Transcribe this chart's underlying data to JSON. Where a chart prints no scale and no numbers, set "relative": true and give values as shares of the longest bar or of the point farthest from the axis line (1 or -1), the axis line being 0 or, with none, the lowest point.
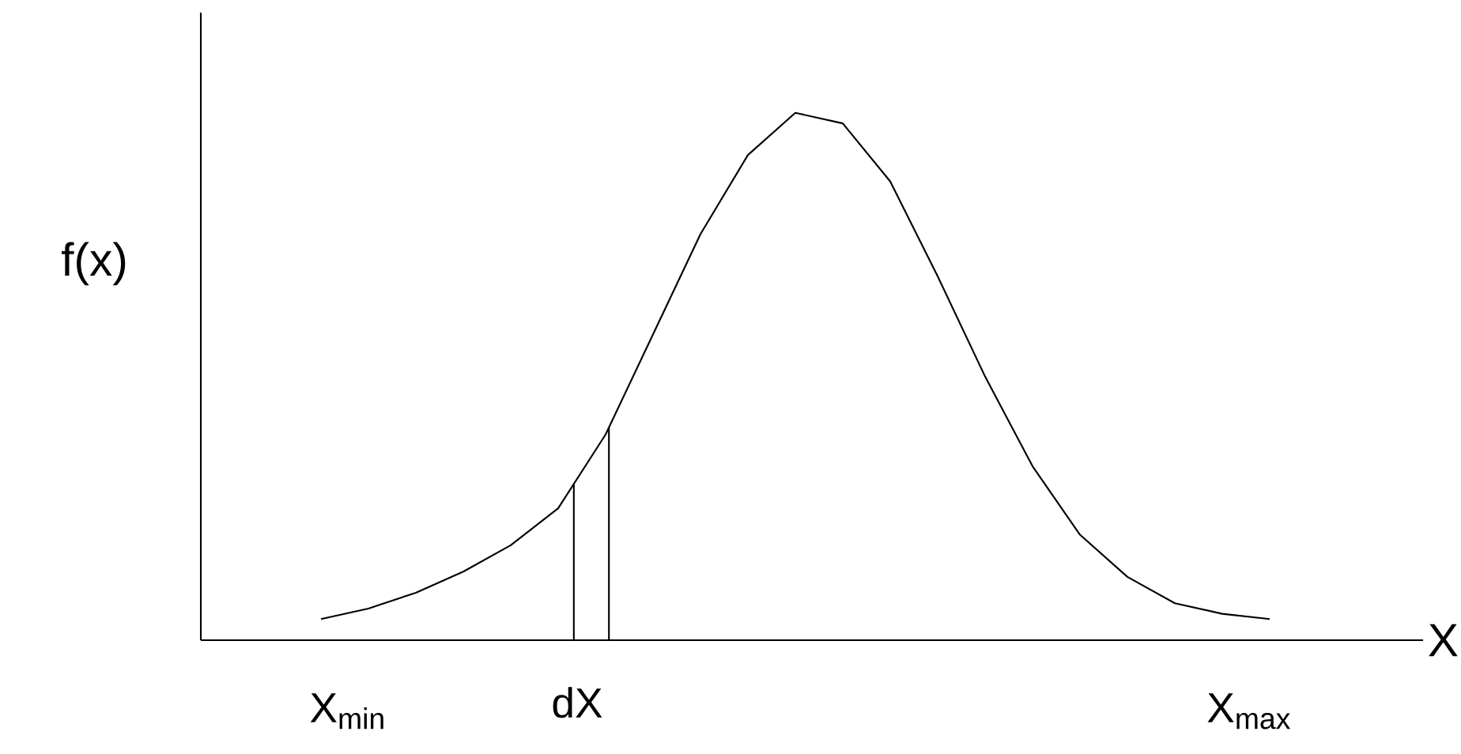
{
  "chart_data": {
    "type": "line",
    "relative": true,
    "xlabel": "X",
    "ylabel": "f(x)",
    "marker": "none",
    "line_style": "solid",
    "categories": [
      null,
      null,
      null,
      null,
      null,
      null,
      null,
      null,
      null,
      null,
      null,
      null,
      null,
      null,
      null,
      null,
      null,
      null,
      null,
      null,
      null
    ],
    "series": [
      {
        "color": "#000000",
        "values": [
          0.04,
          0.06,
          0.09,
          0.13,
          0.18,
          0.25,
          0.39,
          0.58,
          0.77,
          0.92,
          1.0,
          0.98,
          0.87,
          0.69,
          0.5,
          0.33,
          0.2,
          0.12,
          0.07,
          0.05,
          0.04
        ]
      }
    ],
    "annotations": [
      "X$_{min}$",
      "dX",
      "X$_{max}$"
    ]
  }
}
